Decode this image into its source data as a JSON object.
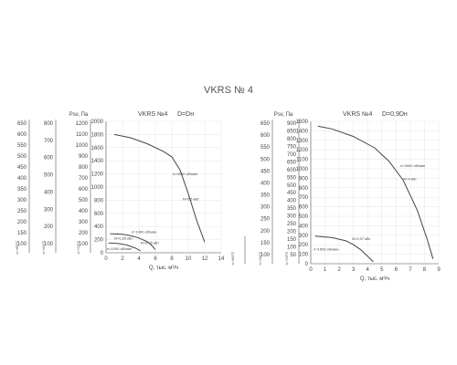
{
  "page": {
    "title": "VKRS № 4"
  },
  "chart_data": [
    {
      "type": "line",
      "subtitle": "VKRS №4",
      "variant": "D=Dн",
      "xlabel": "Q, тыс. м³/ч",
      "ylabel": "Psv, Па",
      "xlim": [
        0,
        14
      ],
      "ylim": [
        0,
        2000
      ],
      "x_ticks": [
        0,
        2,
        4,
        6,
        8,
        10,
        12,
        14
      ],
      "y_ticks": [
        0,
        200,
        400,
        600,
        800,
        1000,
        1200,
        1400,
        1600,
        1800,
        2000
      ],
      "grid": true,
      "secondary_axes": [
        {
          "label": "t=+20°C",
          "ticks": [
            100,
            200,
            300,
            400,
            500,
            600,
            700,
            800,
            900,
            1000,
            1100,
            1200
          ]
        },
        {
          "label": "t=+60°C",
          "ticks": [
            100,
            200,
            300,
            400,
            500,
            600,
            700,
            800
          ]
        },
        {
          "label": "t=+80°C",
          "ticks": [
            100,
            150,
            200,
            250,
            300,
            350,
            400,
            450,
            500,
            550,
            600,
            650
          ]
        }
      ],
      "series": [
        {
          "name": "n=3000 об/мин",
          "x": [
            1,
            3,
            5,
            7,
            8,
            9,
            10,
            11,
            12
          ],
          "y": [
            1800,
            1750,
            1660,
            1540,
            1460,
            1260,
            900,
            500,
            160
          ]
        },
        {
          "name": "n=1400 об/мин",
          "x": [
            0.5,
            2,
            3,
            4,
            5,
            5.5,
            6
          ],
          "y": [
            290,
            280,
            260,
            225,
            170,
            120,
            50
          ]
        },
        {
          "name": "n=1000 об/мин",
          "x": [
            0.3,
            1.5,
            2.5,
            3.5,
            4.2
          ],
          "y": [
            150,
            140,
            120,
            75,
            30
          ]
        }
      ],
      "annotations": [
        {
          "text": "n=3000 об/мин",
          "x": 8.1,
          "y": 1180
        },
        {
          "text": "N=5,5 кВт",
          "x": 9.3,
          "y": 800
        },
        {
          "text": "n=1400 об/мин",
          "x": 3.1,
          "y": 300
        },
        {
          "text": "N=0,75 кВт",
          "x": 4.2,
          "y": 130
        },
        {
          "text": "N=0,25 кВт",
          "x": 1.0,
          "y": 200
        },
        {
          "text": "n=1000 об/мин",
          "x": 0.1,
          "y": 40
        }
      ]
    },
    {
      "type": "line",
      "subtitle": "VKRS №4",
      "variant": "D=0,9Dн",
      "xlabel": "Q, тыс. м³/ч",
      "ylabel": "Psv, Па",
      "xlim": [
        0,
        9
      ],
      "ylim": [
        0,
        1500
      ],
      "x_ticks": [
        0,
        1,
        2,
        3,
        4,
        5,
        6,
        7,
        8,
        9
      ],
      "y_ticks": [
        0,
        100,
        200,
        300,
        400,
        500,
        600,
        700,
        800,
        900,
        1000,
        1100,
        1200,
        1300,
        1400,
        1500
      ],
      "grid": true,
      "secondary_axes": [
        {
          "label": "t=+20°C",
          "ticks": [
            50,
            100,
            150,
            200,
            250,
            300,
            350,
            400,
            450,
            500,
            550,
            600,
            650,
            700,
            750,
            800,
            850,
            900
          ]
        },
        {
          "label": "t=+40°C",
          "ticks": [
            100,
            150,
            200,
            250,
            300,
            350,
            400,
            450,
            500,
            550,
            600,
            650
          ]
        },
        {
          "label": "t=+80°C",
          "ticks": []
        }
      ],
      "series": [
        {
          "name": "n=3000 об/мин",
          "x": [
            0.5,
            1.5,
            3,
            4.5,
            5.5,
            6.5,
            7.5,
            8.2,
            8.6
          ],
          "y": [
            1450,
            1420,
            1340,
            1220,
            1080,
            880,
            560,
            250,
            50
          ]
        },
        {
          "name": "n=1500 об/мин",
          "x": [
            0.3,
            1.5,
            2.5,
            3,
            3.5,
            4,
            4.4
          ],
          "y": [
            290,
            275,
            240,
            200,
            150,
            80,
            20
          ]
        }
      ],
      "annotations": [
        {
          "text": "n=3000 об/мин",
          "x": 6.3,
          "y": 1020
        },
        {
          "text": "N=4 кВт",
          "x": 6.5,
          "y": 880
        },
        {
          "text": "N=0,37 кВт",
          "x": 2.9,
          "y": 250
        },
        {
          "text": "n=1500 об/мин",
          "x": 0.2,
          "y": 140
        }
      ]
    }
  ]
}
